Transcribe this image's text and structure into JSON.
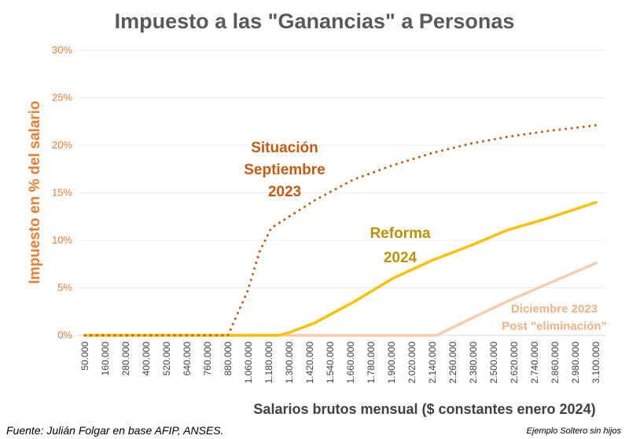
{
  "chart_data": {
    "type": "line",
    "title": "Impuesto a las \"Ganancias\" a Personas",
    "xlabel": "Salarios brutos mensual ($ constantes enero 2024)",
    "ylabel": "Impuesto en % del salario",
    "ylim": [
      0,
      30
    ],
    "yticks": [
      "0%",
      "5%",
      "10%",
      "15%",
      "20%",
      "25%",
      "30%"
    ],
    "grid": true,
    "x_tick_values": [
      50000,
      160000,
      280000,
      400000,
      520000,
      640000,
      760000,
      880000,
      1060000,
      1180000,
      1300000,
      1420000,
      1540000,
      1660000,
      1780000,
      1900000,
      2020000,
      2140000,
      2260000,
      2380000,
      2500000,
      2620000,
      2740000,
      2860000,
      2980000,
      3100000
    ],
    "x_tick_labels": [
      "50.000",
      "160.000",
      "280.000",
      "400.000",
      "520.000",
      "640.000",
      "760.000",
      "880.000",
      "1.060.000",
      "1.180.000",
      "1.300.000",
      "1.420.000",
      "1.540.000",
      "1.660.000",
      "1.780.000",
      "1.900.000",
      "2.020.000",
      "2.140.000",
      "2.260.000",
      "2.380.000",
      "2.500.000",
      "2.620.000",
      "2.740.000",
      "2.860.000",
      "2.980.000",
      "3.100.000"
    ],
    "series": [
      {
        "name": "Situación Septiembre 2023",
        "color": "#C55A11",
        "style": "dotted",
        "x": [
          50000,
          880000,
          1054000,
          1125000,
          1194000,
          1448000,
          1677000,
          1908000,
          2140000,
          2371000,
          2583000,
          2814000,
          3100000
        ],
        "y": [
          0,
          0,
          4.7,
          8.8,
          11.3,
          14.2,
          16.4,
          17.9,
          19.2,
          20.2,
          20.9,
          21.5,
          22.1
        ]
      },
      {
        "name": "Reforma 2024",
        "color": "#FFC000",
        "style": "solid",
        "x": [
          50000,
          1240000,
          1300000,
          1448000,
          1677000,
          1908000,
          2140000,
          2371000,
          2583000,
          2814000,
          3100000
        ],
        "y": [
          0,
          0,
          0.3,
          1.3,
          3.5,
          6.0,
          7.9,
          9.5,
          11.1,
          12.3,
          14.0
        ]
      },
      {
        "name": "Diciembre 2023 Post \"eliminación\"",
        "color": "#F8CBAD",
        "style": "solid",
        "x": [
          50000,
          2165000,
          2371000,
          2583000,
          2814000,
          3100000
        ],
        "y": [
          0,
          0,
          1.8,
          3.6,
          5.4,
          7.6
        ]
      }
    ],
    "annotations": [
      {
        "lines": [
          "Situación",
          "Septiembre",
          "2023"
        ],
        "color": "#C55A11"
      },
      {
        "lines": [
          "Reforma",
          "2024"
        ],
        "color": "#BF9000"
      },
      {
        "lines": [
          "Diciembre 2023",
          "Post \"eliminación\""
        ],
        "color": "#F4B183"
      }
    ]
  },
  "footer": {
    "source": "Fuente: Julián Folgar en base AFIP, ANSES.",
    "note": "Ejemplo Soltero sin hijos"
  }
}
